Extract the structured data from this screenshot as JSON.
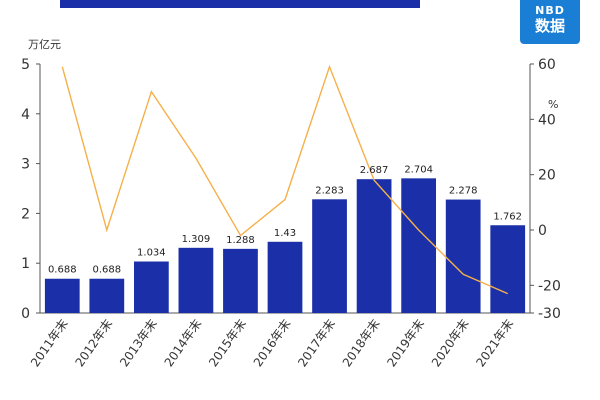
{
  "brand": {
    "top": "NBD",
    "bottom": "数据"
  },
  "colors": {
    "bar": "#1a2fa8",
    "line": "#f5b04a",
    "axis": "#555555",
    "header_strip": "#1a2fa8"
  },
  "chart_data": {
    "type": "bar",
    "title": "",
    "categories": [
      "2011年末",
      "2012年末",
      "2013年末",
      "2014年末",
      "2015年末",
      "2016年末",
      "2017年末",
      "2018年末",
      "2019年末",
      "2020年末",
      "2021年末"
    ],
    "series": [
      {
        "values": [
          0.688,
          0.688,
          1.034,
          1.309,
          1.288,
          1.43,
          2.283,
          2.687,
          2.704,
          2.278,
          1.762
        ],
        "axis": "left",
        "kind": "bar"
      },
      {
        "values": [
          59,
          0,
          50,
          26,
          -2,
          11,
          59,
          18,
          0,
          -16,
          -23
        ],
        "axis": "right",
        "kind": "line"
      }
    ],
    "data_labels": [
      "0.688",
      "0.688",
      "1.034",
      "1.309",
      "1.288",
      "1.43",
      "2.283",
      "2.687",
      "2.704",
      "2.278",
      "1.762"
    ],
    "ylabel": "万亿元",
    "y2label": "%",
    "ylim": [
      0,
      5
    ],
    "y2lim": [
      -30,
      60
    ],
    "yticks": [
      "0",
      "1",
      "2",
      "3",
      "4",
      "5"
    ],
    "y2ticks": [
      "-30",
      "-20",
      "0",
      "20",
      "40",
      "60"
    ],
    "grid": false,
    "legend": "none"
  }
}
